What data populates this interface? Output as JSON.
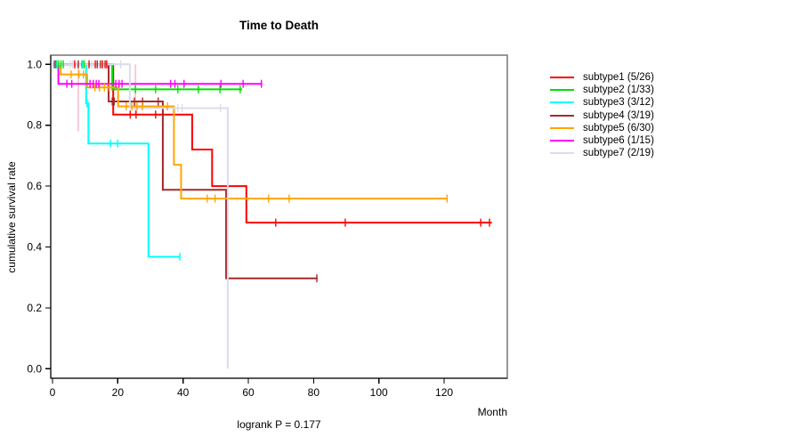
{
  "chart_data": {
    "type": "line",
    "subtype": "kaplan-meier-step",
    "title": "Time to Death",
    "ylabel": "cumulative survival rate",
    "xlabel": "Month",
    "annotation": "logrank P = 0.177",
    "grid": false,
    "legend_position": "right-outside",
    "xlim": [
      0,
      139
    ],
    "ylim": [
      0.0,
      1.04
    ],
    "x_ticks": [
      0,
      20,
      40,
      60,
      80,
      100,
      120
    ],
    "y_ticks": [
      {
        "v": 1.0,
        "label": "1.0"
      },
      {
        "v": 0.8,
        "label": "0.8"
      },
      {
        "v": 0.6,
        "label": "0.6"
      },
      {
        "v": 0.4,
        "label": "0.4"
      },
      {
        "v": 0.2,
        "label": "0.2"
      },
      {
        "v": 0.0,
        "label": "0.0"
      }
    ],
    "series": [
      {
        "name": "subtype1",
        "events_total": "5/26",
        "label": "subtype1 (5/26)",
        "color": "#FF0000",
        "steps": [
          [
            0,
            1.0
          ],
          [
            18.6,
            0.835
          ],
          [
            42.8,
            0.72
          ],
          [
            48.9,
            0.6
          ],
          [
            59.4,
            0.48
          ],
          [
            134.6,
            0.48
          ]
        ],
        "censors": [
          [
            6.8,
            1.0
          ],
          [
            11.2,
            1.0
          ],
          [
            13.1,
            1.0
          ],
          [
            15.3,
            1.0
          ],
          [
            16.6,
            1.0
          ],
          [
            23.8,
            0.835
          ],
          [
            25.6,
            0.835
          ],
          [
            31.6,
            0.835
          ],
          [
            68.4,
            0.48
          ],
          [
            89.7,
            0.48
          ],
          [
            131.2,
            0.48
          ],
          [
            133.9,
            0.48
          ]
        ]
      },
      {
        "name": "subtype2",
        "events_total": "1/33",
        "label": "subtype2 (1/33)",
        "color": "#00E100",
        "steps": [
          [
            0,
            1.0
          ],
          [
            18.3,
            0.918
          ],
          [
            58.1,
            0.918
          ]
        ],
        "censors": [
          [
            0.5,
            1.0
          ],
          [
            1.1,
            1.0
          ],
          [
            1.9,
            1.0
          ],
          [
            2.6,
            1.0
          ],
          [
            3.3,
            1.0
          ],
          [
            9.0,
            1.0
          ],
          [
            9.7,
            1.0
          ],
          [
            25.4,
            0.918
          ],
          [
            31.6,
            0.918
          ],
          [
            38.4,
            0.918
          ],
          [
            44.7,
            0.918
          ],
          [
            51.3,
            0.918
          ],
          [
            57.5,
            0.918
          ]
        ]
      },
      {
        "name": "subtype3",
        "events_total": "3/12",
        "label": "subtype3 (3/12)",
        "color": "#00FFFF",
        "steps": [
          [
            0,
            1.0
          ],
          [
            10.3,
            0.872
          ],
          [
            11.0,
            0.74
          ],
          [
            29.4,
            0.368
          ],
          [
            39.2,
            0.368
          ]
        ],
        "censors": [
          [
            1.4,
            1.0
          ],
          [
            9.3,
            1.0
          ],
          [
            10.6,
            0.872
          ],
          [
            17.8,
            0.74
          ],
          [
            20.0,
            0.74
          ],
          [
            39.0,
            0.368
          ]
        ]
      },
      {
        "name": "subtype4",
        "events_total": "3/19",
        "label": "subtype4 (3/19)",
        "color": "#A52A2A",
        "steps": [
          [
            0,
            1.0
          ],
          [
            17.2,
            0.878
          ],
          [
            33.8,
            0.588
          ],
          [
            53.2,
            0.297
          ],
          [
            81.2,
            0.297
          ]
        ],
        "censors": [
          [
            7.9,
            1.0
          ],
          [
            13.7,
            1.0
          ],
          [
            14.7,
            1.0
          ],
          [
            16.1,
            1.0
          ],
          [
            18.3,
            0.878
          ],
          [
            18.9,
            0.878
          ],
          [
            25.1,
            0.878
          ],
          [
            27.6,
            0.878
          ],
          [
            32.4,
            0.878
          ],
          [
            81.0,
            0.297
          ]
        ]
      },
      {
        "name": "subtype5",
        "events_total": "6/30",
        "label": "subtype5 (6/30)",
        "color": "#FFA500",
        "steps": [
          [
            0,
            1.0
          ],
          [
            2.5,
            0.967
          ],
          [
            10.6,
            0.924
          ],
          [
            20.1,
            0.862
          ],
          [
            37.2,
            0.67
          ],
          [
            39.4,
            0.559
          ],
          [
            121.1,
            0.559
          ]
        ],
        "censors": [
          [
            5.7,
            0.967
          ],
          [
            8.1,
            0.967
          ],
          [
            9.5,
            0.967
          ],
          [
            13.0,
            0.924
          ],
          [
            14.4,
            0.924
          ],
          [
            15.9,
            0.924
          ],
          [
            17.4,
            0.924
          ],
          [
            22.6,
            0.862
          ],
          [
            24.3,
            0.862
          ],
          [
            25.9,
            0.862
          ],
          [
            27.5,
            0.862
          ],
          [
            35.2,
            0.862
          ],
          [
            47.4,
            0.559
          ],
          [
            49.8,
            0.559
          ],
          [
            66.2,
            0.559
          ],
          [
            72.5,
            0.559
          ],
          [
            120.9,
            0.559
          ]
        ]
      },
      {
        "name": "subtype6",
        "events_total": "1/15",
        "label": "subtype6 (1/15)",
        "color": "#FF00FF",
        "steps": [
          [
            0,
            1.0
          ],
          [
            1.8,
            0.936
          ],
          [
            64.3,
            0.936
          ]
        ],
        "censors": [
          [
            0.8,
            1.0
          ],
          [
            4.4,
            0.936
          ],
          [
            5.9,
            0.936
          ],
          [
            11.5,
            0.936
          ],
          [
            12.5,
            0.936
          ],
          [
            13.4,
            0.936
          ],
          [
            14.2,
            0.936
          ],
          [
            19.4,
            0.936
          ],
          [
            20.4,
            0.936
          ],
          [
            21.3,
            0.936
          ],
          [
            36.2,
            0.936
          ],
          [
            37.5,
            0.936
          ],
          [
            40.3,
            0.936
          ],
          [
            51.6,
            0.936
          ],
          [
            58.4,
            0.936
          ],
          [
            64.0,
            0.936
          ]
        ]
      },
      {
        "name": "subtype7",
        "events_total": "2/19",
        "label": "subtype7 (2/19)",
        "color": "#DCDCEF",
        "steps": [
          [
            0,
            1.0
          ],
          [
            23.7,
            0.856
          ],
          [
            53.7,
            0.0
          ]
        ],
        "censors": [
          [
            5.5,
            1.0
          ],
          [
            6.2,
            1.0
          ],
          [
            12.0,
            1.0
          ],
          [
            20.9,
            1.0
          ],
          [
            38.4,
            0.856
          ],
          [
            39.7,
            0.856
          ],
          [
            51.5,
            0.856
          ]
        ]
      }
    ],
    "extra_faint_segments": [
      {
        "m": 7.9,
        "v_from": 1.0,
        "v_to": 0.78,
        "color": "#F6CCD6"
      },
      {
        "m": 25.4,
        "v_from": 1.0,
        "v_to": 0.835,
        "color": "#F6CCD6"
      }
    ]
  }
}
